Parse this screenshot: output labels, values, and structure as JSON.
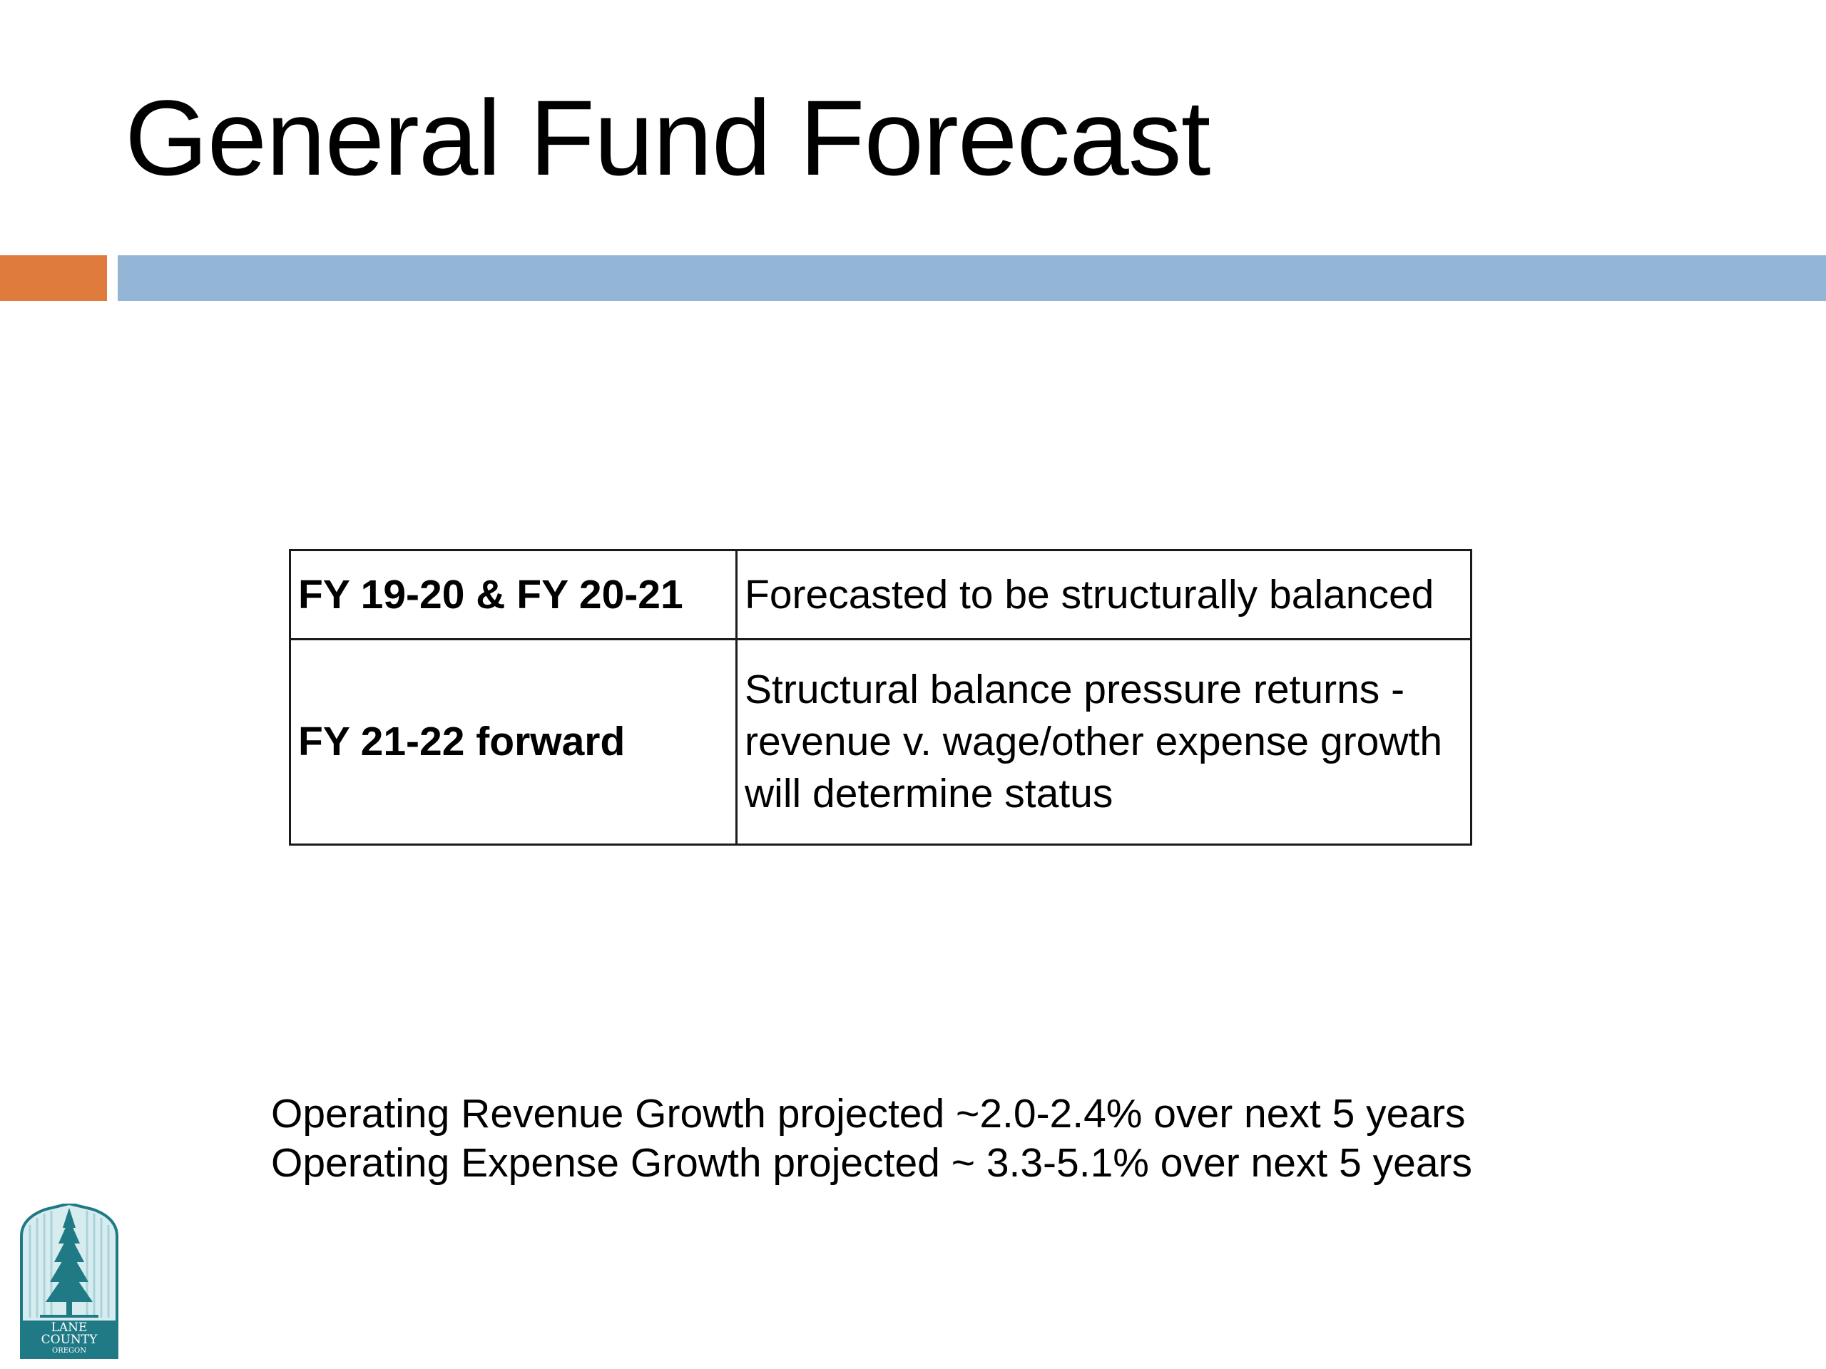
{
  "slide": {
    "title": "General Fund Forecast",
    "colors": {
      "accent_orange": "#e07b3e",
      "accent_blue": "#94b6d6",
      "logo_teal": "#1f7a86"
    }
  },
  "table": {
    "rows": [
      {
        "period": "FY 19-20 & FY 20-21",
        "description": [
          "Forecasted to be structurally balanced"
        ]
      },
      {
        "period": "FY 21-22 forward",
        "description": [
          "Structural balance pressure returns -",
          "revenue v. wage/other expense growth",
          "will determine status"
        ]
      }
    ]
  },
  "notes": [
    "Operating Revenue Growth projected ~2.0-2.4% over next 5 years",
    "Operating Expense Growth projected ~ 3.3-5.1% over next 5 years"
  ],
  "logo": {
    "icon": "lane-county-tree-logo",
    "lines": [
      "LANE",
      "COUNTY",
      "OREGON"
    ]
  }
}
